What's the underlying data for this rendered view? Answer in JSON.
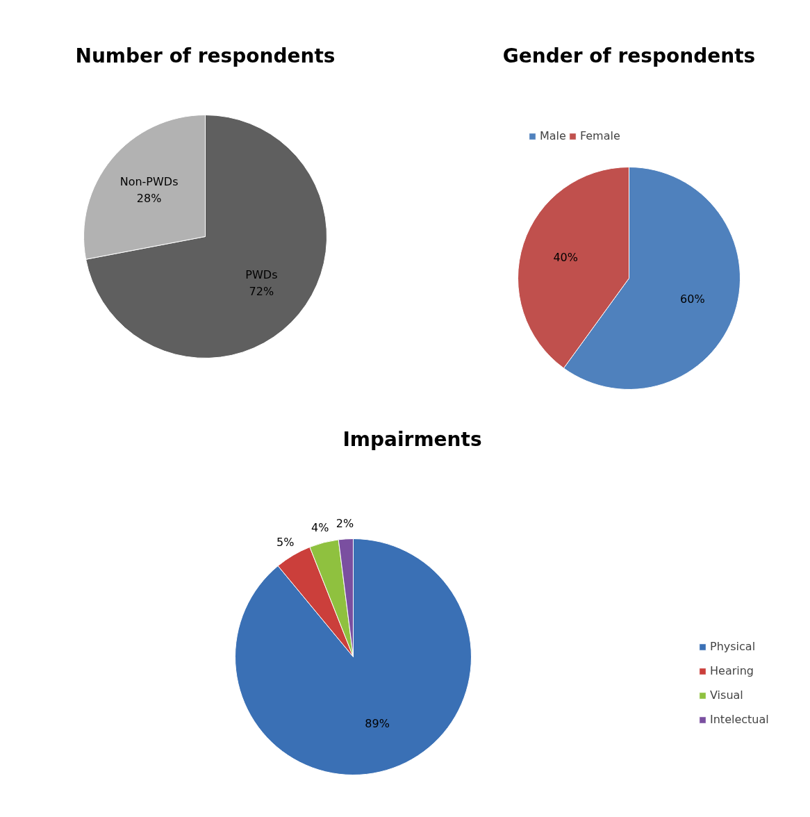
{
  "chart_data": [
    {
      "type": "pie",
      "title": "Number of respondents",
      "categories": [
        "PWDs",
        "Non-PWDs"
      ],
      "values": [
        72,
        28
      ],
      "colors": [
        "#5f5f5f",
        "#b2b2b2"
      ],
      "value_labels": [
        "72%",
        "28%"
      ],
      "legend": false
    },
    {
      "type": "pie",
      "title": "Gender of respondents",
      "categories": [
        "Male",
        "Female",
        null,
        null
      ],
      "values": [
        60,
        40,
        0,
        0
      ],
      "colors": [
        "#4f81bd",
        "#c0504d",
        "#9bbb59",
        "#8064a2"
      ],
      "value_labels": [
        "60%",
        "40%",
        null,
        null
      ],
      "legend": "top"
    },
    {
      "type": "pie",
      "title": "Impairments",
      "categories": [
        "Physical",
        "Hearing",
        "Visual",
        "Intelectual"
      ],
      "values": [
        89,
        5,
        4,
        2
      ],
      "colors": [
        "#3a70b5",
        "#cb3f3b",
        "#8fc13f",
        "#7a4fa0"
      ],
      "value_labels": [
        "89%",
        "5%",
        "4%",
        "2%"
      ],
      "legend": "right"
    }
  ]
}
